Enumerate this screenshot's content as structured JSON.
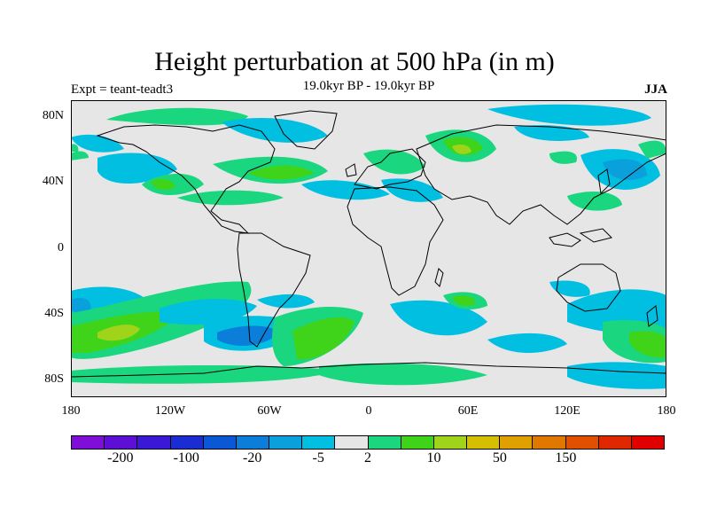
{
  "title": "Height perturbation at 500 hPa (in m)",
  "experiment_label": "Expt = teant-teadt3",
  "subtitle": "19.0kyr BP - 19.0kyr BP",
  "season": "JJA",
  "map": {
    "projection": "cylindrical-equidistant",
    "lat_range": [
      -90,
      90
    ],
    "lon_range": [
      -180,
      180
    ],
    "background_color": "#e6e6e6",
    "coastline_color": "#000000",
    "y_ticks": [
      {
        "label": "80N",
        "lat": 80
      },
      {
        "label": "40N",
        "lat": 40
      },
      {
        "label": "0",
        "lat": 0
      },
      {
        "label": "40S",
        "lat": -40
      },
      {
        "label": "80S",
        "lat": -80
      }
    ],
    "x_ticks": [
      {
        "label": "180",
        "lon": -180
      },
      {
        "label": "120W",
        "lon": -120
      },
      {
        "label": "60W",
        "lon": -60
      },
      {
        "label": "0",
        "lon": 0
      },
      {
        "label": "60E",
        "lon": 60
      },
      {
        "label": "120E",
        "lon": 120
      },
      {
        "label": "180",
        "lon": 180
      }
    ]
  },
  "colorbar": {
    "colors": [
      "#7f0ed9",
      "#5d0fd6",
      "#3b18d6",
      "#1c2cd3",
      "#0a58d6",
      "#0a7ed9",
      "#0aa0dc",
      "#00bfe0",
      "#e6e6e6",
      "#19d67f",
      "#3fd41a",
      "#9fd41a",
      "#d4c000",
      "#e0a000",
      "#e07800",
      "#e05000",
      "#e02800",
      "#e00000"
    ],
    "labels": [
      "-200",
      "-100",
      "-20",
      "-5",
      "2",
      "10",
      "50",
      "150"
    ]
  }
}
